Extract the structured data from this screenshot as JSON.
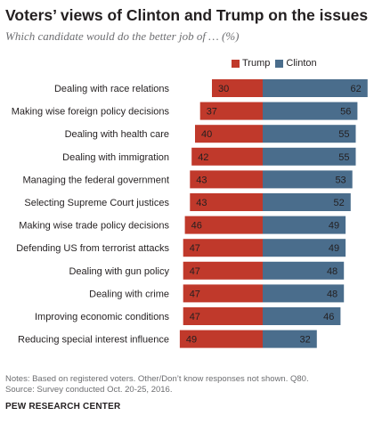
{
  "header": {
    "title": "Voters’ views of Clinton and Trump on the issues",
    "subtitle": "Which candidate would do the better job of … (%)"
  },
  "footer": {
    "note_line1": "Notes: Based on registered voters. Other/Don’t know responses not shown. Q80.",
    "note_line2": "Source: Survey conducted Oct. 20-25, 2016.",
    "organization": "PEW RESEARCH CENTER"
  },
  "colors": {
    "trump": "#c0392b",
    "clinton": "#4a6d8c"
  },
  "chart_data": {
    "type": "bar",
    "title": "Voters’ views of Clinton and Trump on the issues",
    "subtitle": "Which candidate would do the better job of … (%)",
    "legend": "top-right",
    "grid": false,
    "categories": [
      "Dealing with race relations",
      "Making wise foreign policy decisions",
      "Dealing with health care",
      "Dealing with immigration",
      "Managing the federal government",
      "Selecting Supreme Court justices",
      "Making wise trade policy decisions",
      "Defending US from terrorist attacks",
      "Dealing with gun policy",
      "Dealing with crime",
      "Improving economic conditions",
      "Reducing special interest influence"
    ],
    "series": [
      {
        "name": "Trump",
        "color": "#c0392b",
        "values": [
          30,
          37,
          40,
          42,
          43,
          43,
          46,
          47,
          47,
          47,
          47,
          49
        ]
      },
      {
        "name": "Clinton",
        "color": "#4a6d8c",
        "values": [
          62,
          56,
          55,
          55,
          53,
          52,
          49,
          49,
          48,
          48,
          46,
          32
        ]
      }
    ]
  }
}
